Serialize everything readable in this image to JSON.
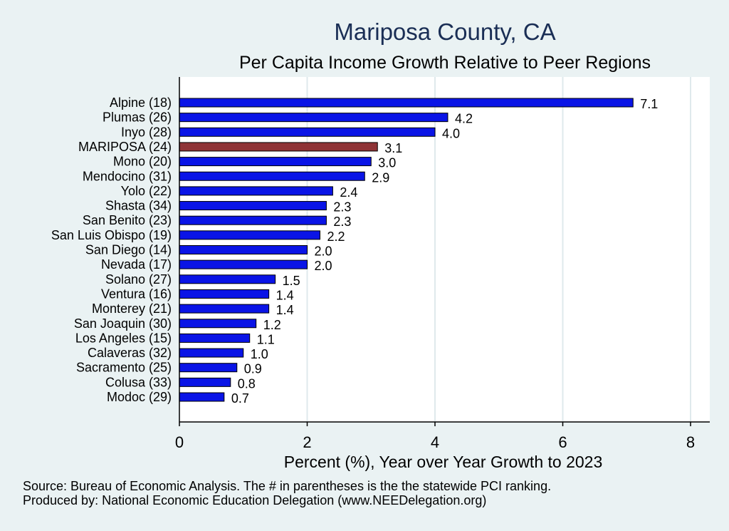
{
  "chart_data": {
    "type": "bar",
    "orientation": "horizontal",
    "title": "Mariposa County, CA",
    "subtitle": "Per Capita Income Growth Relative to Peer Regions",
    "xlabel": "Percent (%), Year over Year Growth to 2023",
    "xlim": [
      0,
      8
    ],
    "xticks": [
      "0",
      "2",
      "4",
      "6",
      "8"
    ],
    "grid": true,
    "categories": [
      "Alpine (18)",
      "Plumas (26)",
      "Inyo (28)",
      "MARIPOSA (24)",
      "Mono (20)",
      "Mendocino (31)",
      "Yolo (22)",
      "Shasta (34)",
      "San Benito (23)",
      "San Luis Obispo (19)",
      "San Diego (14)",
      "Nevada (17)",
      "Solano (27)",
      "Ventura (16)",
      "Monterey (21)",
      "San Joaquin (30)",
      "Los Angeles (15)",
      "Calaveras (32)",
      "Sacramento (25)",
      "Colusa (33)",
      "Modoc (29)"
    ],
    "values": [
      7.1,
      4.2,
      4.0,
      3.1,
      3.0,
      2.9,
      2.4,
      2.3,
      2.3,
      2.2,
      2.0,
      2.0,
      1.5,
      1.4,
      1.4,
      1.2,
      1.1,
      1.0,
      0.9,
      0.8,
      0.7
    ],
    "value_labels": [
      "7.1",
      "4.2",
      "4.0",
      "3.1",
      "3.0",
      "2.9",
      "2.4",
      "2.3",
      "2.3",
      "2.2",
      "2.0",
      "2.0",
      "1.5",
      "1.4",
      "1.4",
      "1.2",
      "1.1",
      "1.0",
      "0.9",
      "0.8",
      "0.7"
    ],
    "highlight_index": 3,
    "colors": {
      "bar": "#0a14e6",
      "highlight": "#8f3336",
      "bar_edge": "#000000",
      "plot_bg": "#ffffff",
      "page_bg": "#eaf2f3",
      "grid": "#dfe9ec",
      "title": "#1a2e55"
    }
  },
  "footnotes": {
    "source": "Source: Bureau of Economic Analysis. The # in parentheses is the the statewide PCI ranking.",
    "producer": "Produced by: National Economic Education Delegation (www.NEEDelegation.org)"
  }
}
